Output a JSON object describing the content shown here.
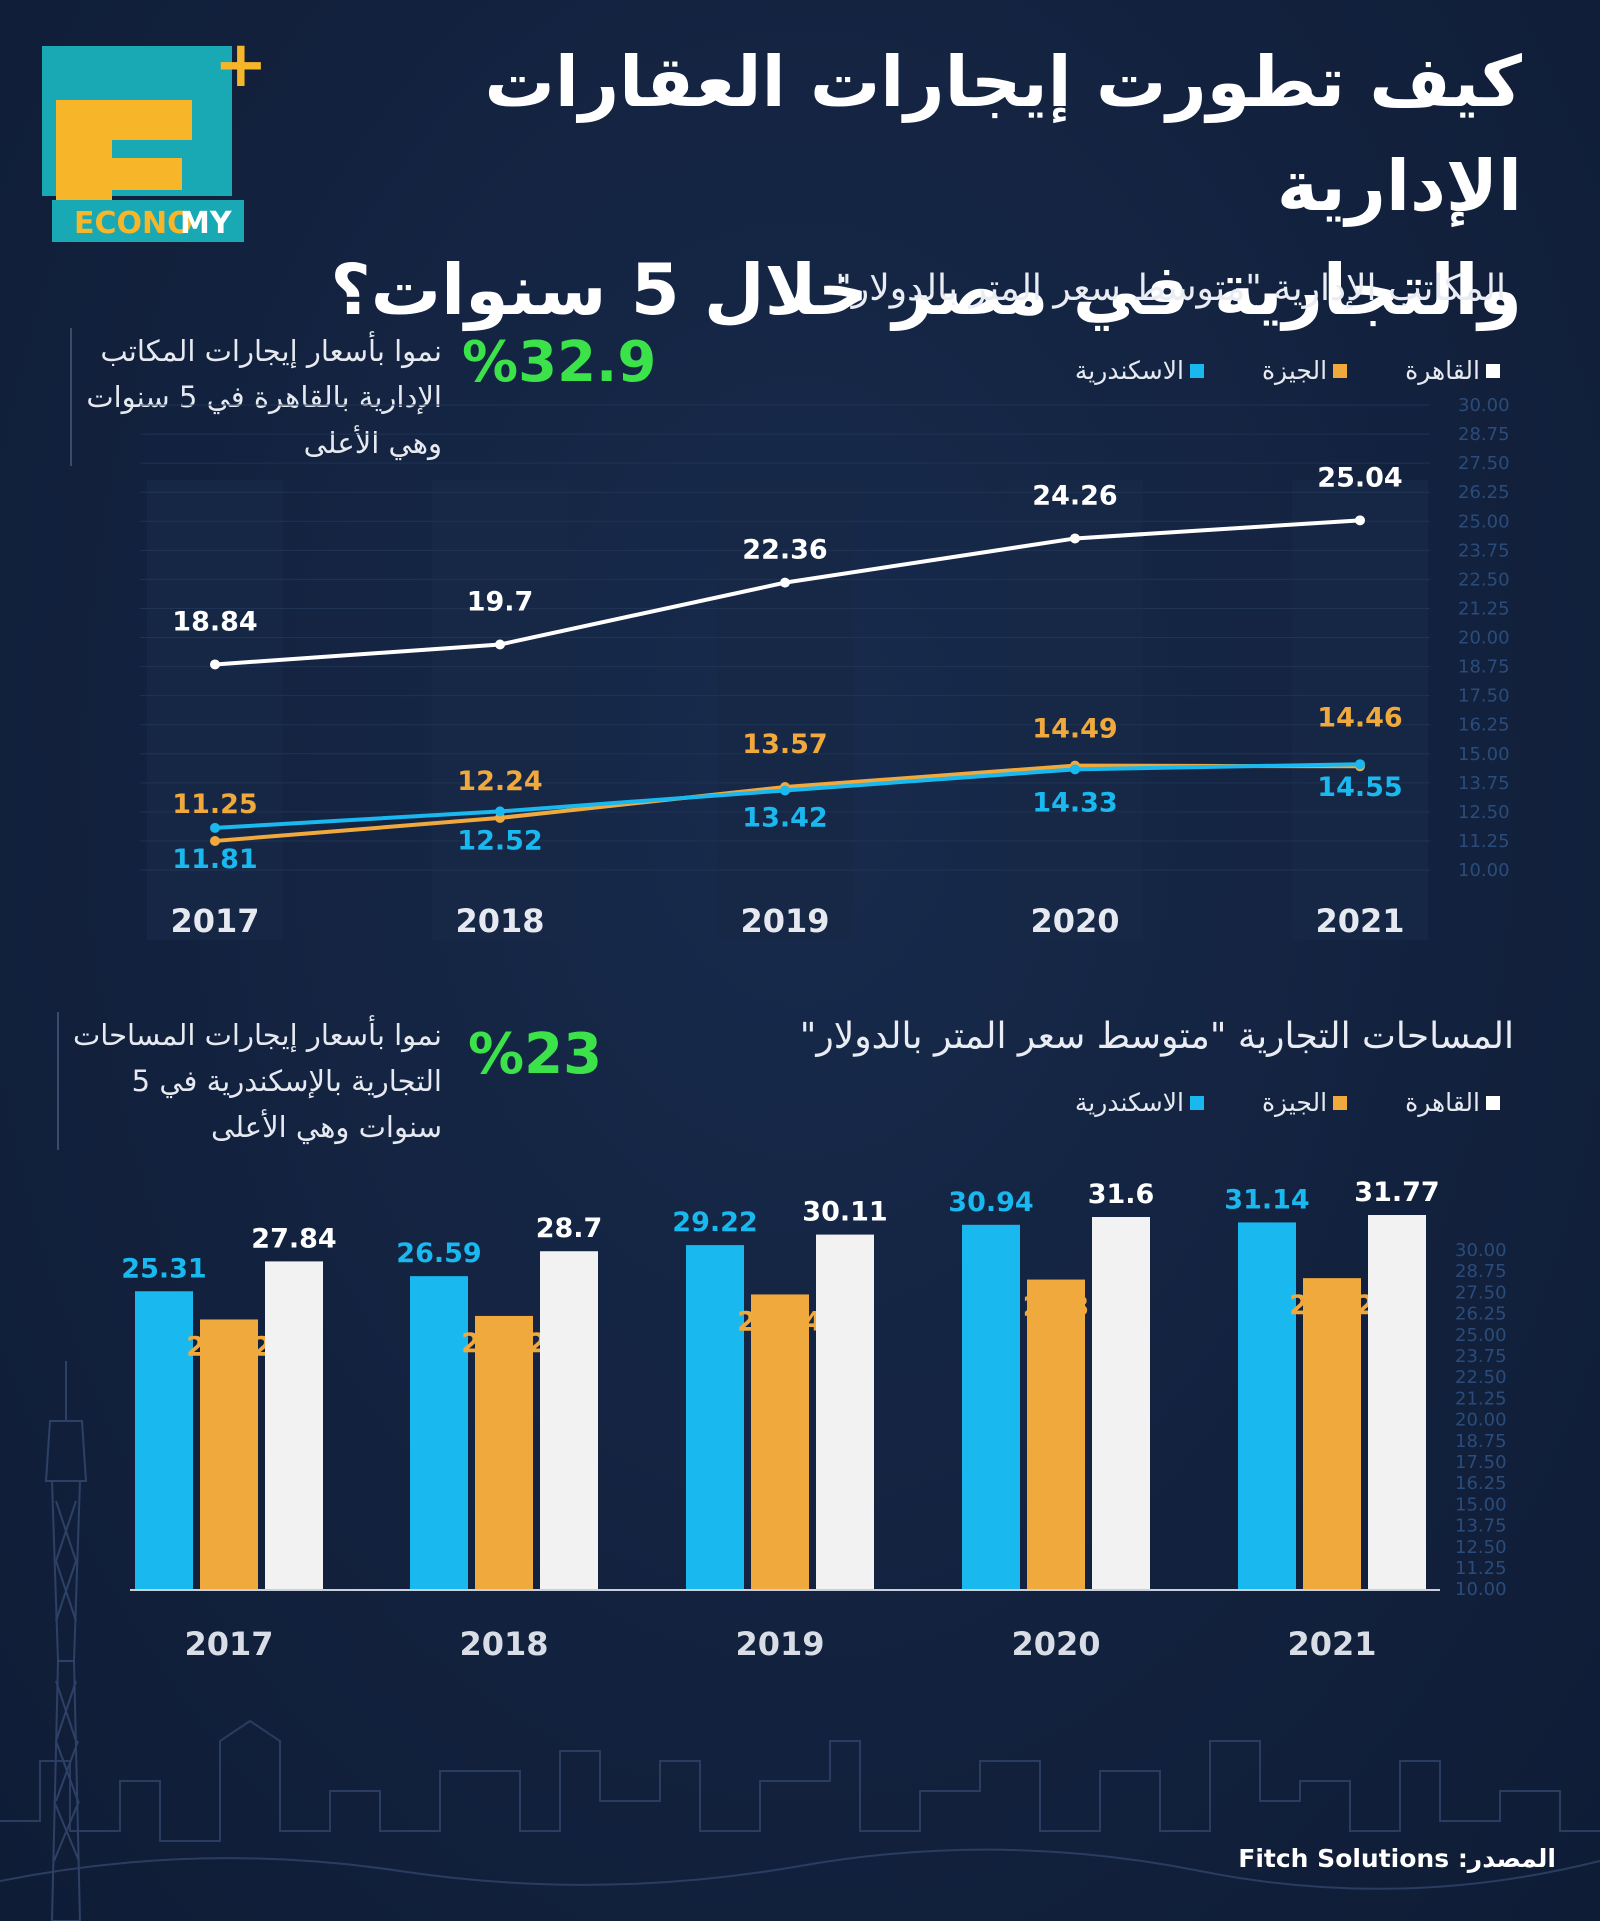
{
  "brand": {
    "logo_letter": "E",
    "logo_word_a": "ECONO",
    "logo_word_b": "MY",
    "logo_plus": "+",
    "colors": {
      "teal": "#18a9b4",
      "yellow": "#f7b52a",
      "green": "#3be24a"
    }
  },
  "title": {
    "line1": "كيف تطورت إيجارات العقارات الإدارية",
    "line2": "والتجارية في مصر خلال 5 سنوات؟"
  },
  "legend": {
    "cairo": "القاهرة",
    "giza": "الجيزة",
    "alex": "الاسكندرية"
  },
  "offices": {
    "section_title": "المكاتب الإدارية \"متوسط سعر المتر بالدولار\"",
    "stat_value": "%32.9",
    "stat_text": [
      "نموا بأسعار إيجارات المكاتب",
      "الإدارية بالقاهرة في 5 سنوات",
      "وهي الأعلى"
    ]
  },
  "commercial": {
    "section_title": "المساحات التجارية \"متوسط سعر المتر بالدولار\"",
    "stat_value": "%23",
    "stat_text": [
      "نموا بأسعار إيجارات المساحات",
      "التجارية بالإسكندرية في 5",
      "سنوات وهي الأعلى"
    ]
  },
  "source": "المصدر: Fitch Solutions",
  "chart_data": [
    {
      "type": "line",
      "title": "المكاتب الإدارية \"متوسط سعر المتر بالدولار\"",
      "x": [
        "2017",
        "2018",
        "2019",
        "2020",
        "2021"
      ],
      "series": [
        {
          "name": "القاهرة",
          "color": "#ffffff",
          "values": [
            18.84,
            19.7,
            22.36,
            24.26,
            25.04
          ]
        },
        {
          "name": "الجيزة",
          "color": "#f0a93c",
          "values": [
            11.25,
            12.24,
            13.57,
            14.49,
            14.46
          ]
        },
        {
          "name": "الاسكندرية",
          "color": "#19b8ef",
          "values": [
            11.81,
            12.52,
            13.42,
            14.33,
            14.55
          ]
        }
      ],
      "yticks": [
        "30.00",
        "28.75",
        "27.50",
        "26.25",
        "25.00",
        "23.75",
        "22.50",
        "21.25",
        "20.00",
        "18.75",
        "17.50",
        "16.25",
        "15.00",
        "13.75",
        "12.50",
        "11.25",
        "10.00"
      ],
      "ylim": [
        10,
        30
      ],
      "legend": "top-right",
      "grid": true
    },
    {
      "type": "bar",
      "title": "المساحات التجارية \"متوسط سعر المتر بالدولار\"",
      "categories": [
        "2017",
        "2018",
        "2019",
        "2020",
        "2021"
      ],
      "series": [
        {
          "name": "الاسكندرية",
          "color": "#19b8ef",
          "values": [
            25.31,
            26.59,
            29.22,
            30.94,
            31.14
          ]
        },
        {
          "name": "الجيزة",
          "color": "#f0a93c",
          "values": [
            22.92,
            23.22,
            25.04,
            26.3,
            26.42
          ]
        },
        {
          "name": "القاهرة",
          "color": "#f2f2f2",
          "values": [
            27.84,
            28.7,
            30.11,
            31.6,
            31.77
          ]
        }
      ],
      "yticks": [
        "30.00",
        "28.75",
        "27.50",
        "26.25",
        "25.00",
        "23.75",
        "22.50",
        "21.25",
        "20.00",
        "18.75",
        "17.50",
        "16.25",
        "15.00",
        "13.75",
        "12.50",
        "11.25",
        "10.00"
      ],
      "ylim": [
        0,
        31.77
      ],
      "legend": "top-right",
      "grid": false
    }
  ]
}
